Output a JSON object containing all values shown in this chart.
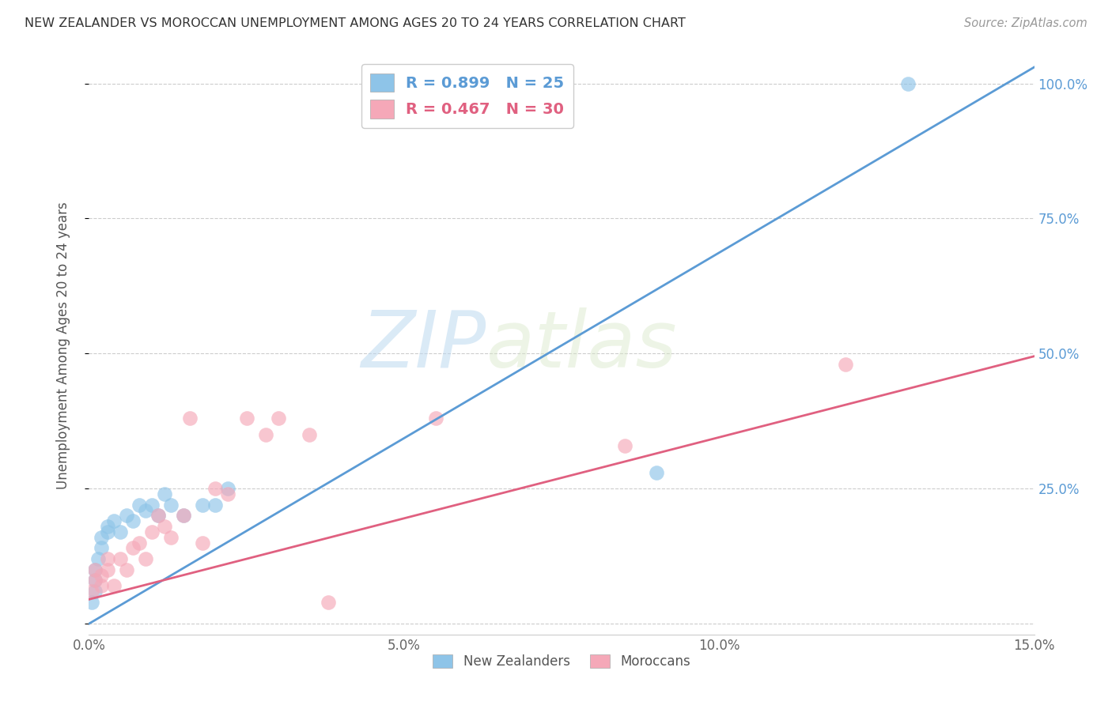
{
  "title": "NEW ZEALANDER VS MOROCCAN UNEMPLOYMENT AMONG AGES 20 TO 24 YEARS CORRELATION CHART",
  "source": "Source: ZipAtlas.com",
  "ylabel": "Unemployment Among Ages 20 to 24 years",
  "xlim": [
    0,
    0.15
  ],
  "ylim": [
    -0.02,
    1.05
  ],
  "yticks": [
    0.0,
    0.25,
    0.5,
    0.75,
    1.0
  ],
  "ytick_labels": [
    "",
    "25.0%",
    "50.0%",
    "75.0%",
    "100.0%"
  ],
  "xticks": [
    0.0,
    0.05,
    0.1,
    0.15
  ],
  "xtick_labels": [
    "0.0%",
    "5.0%",
    "10.0%",
    "15.0%"
  ],
  "nz_color": "#8EC4E8",
  "nz_line_color": "#5B9BD5",
  "moroccan_color": "#F5A8B8",
  "moroccan_line_color": "#E06080",
  "nz_R": 0.899,
  "nz_N": 25,
  "moroccan_R": 0.467,
  "moroccan_N": 30,
  "watermark_zip": "ZIP",
  "watermark_atlas": "atlas",
  "background_color": "#ffffff",
  "nz_line_x": [
    0.0,
    0.15
  ],
  "nz_line_y": [
    0.0,
    1.03
  ],
  "moroccan_line_x": [
    0.0,
    0.15
  ],
  "moroccan_line_y": [
    0.045,
    0.495
  ],
  "nz_x": [
    0.0005,
    0.001,
    0.001,
    0.001,
    0.0015,
    0.002,
    0.002,
    0.003,
    0.003,
    0.004,
    0.005,
    0.006,
    0.007,
    0.008,
    0.009,
    0.01,
    0.011,
    0.012,
    0.013,
    0.015,
    0.018,
    0.02,
    0.022,
    0.09,
    0.13
  ],
  "nz_y": [
    0.04,
    0.06,
    0.08,
    0.1,
    0.12,
    0.14,
    0.16,
    0.18,
    0.17,
    0.19,
    0.17,
    0.2,
    0.19,
    0.22,
    0.21,
    0.22,
    0.2,
    0.24,
    0.22,
    0.2,
    0.22,
    0.22,
    0.25,
    0.28,
    1.0
  ],
  "moroccan_x": [
    0.0005,
    0.001,
    0.001,
    0.002,
    0.002,
    0.003,
    0.003,
    0.004,
    0.005,
    0.006,
    0.007,
    0.008,
    0.009,
    0.01,
    0.011,
    0.012,
    0.013,
    0.015,
    0.016,
    0.018,
    0.02,
    0.022,
    0.025,
    0.028,
    0.03,
    0.035,
    0.038,
    0.055,
    0.085,
    0.12
  ],
  "moroccan_y": [
    0.06,
    0.08,
    0.1,
    0.07,
    0.09,
    0.1,
    0.12,
    0.07,
    0.12,
    0.1,
    0.14,
    0.15,
    0.12,
    0.17,
    0.2,
    0.18,
    0.16,
    0.2,
    0.38,
    0.15,
    0.25,
    0.24,
    0.38,
    0.35,
    0.38,
    0.35,
    0.04,
    0.38,
    0.33,
    0.48
  ]
}
